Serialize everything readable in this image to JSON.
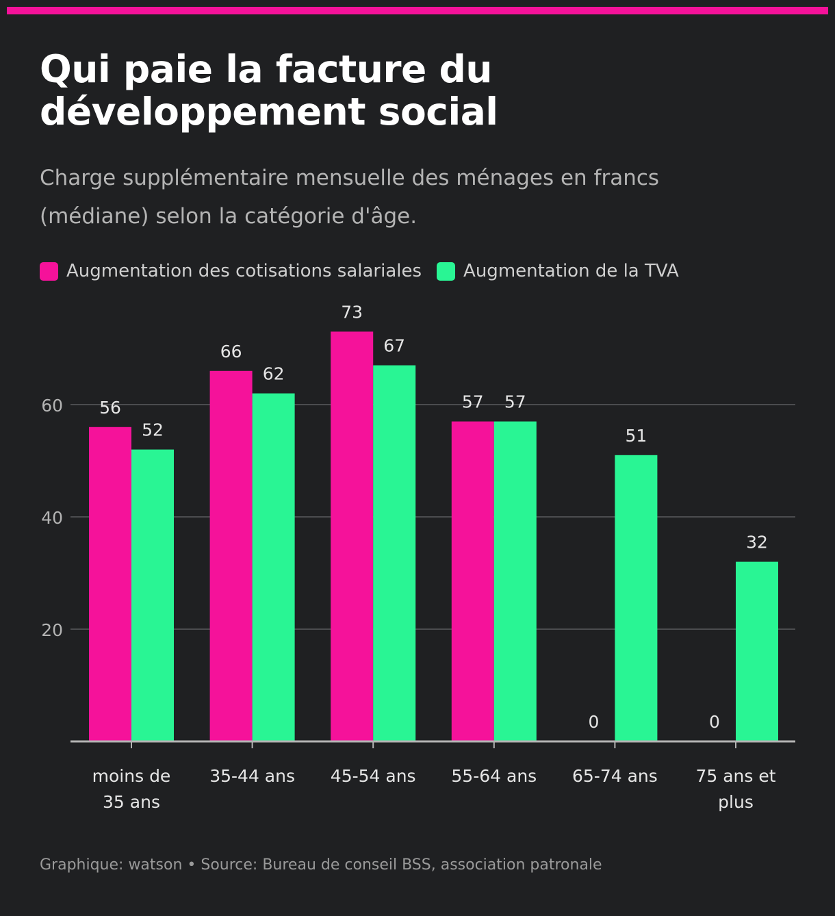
{
  "header": {
    "title_line1": "Qui paie la facture du",
    "title_line2": "développement social",
    "subtitle_line1": "Charge supplémentaire mensuelle des ménages en francs",
    "subtitle_line2": "(médiane) selon la catégorie d'âge."
  },
  "footer": {
    "credit": "Graphique: watson • Source: Bureau de conseil BSS, association patronale"
  },
  "colors": {
    "accent": "#f5129a",
    "series1": "#f5129a",
    "series2": "#29f594",
    "background": "#1f2022"
  },
  "chart_data": {
    "type": "bar",
    "title": "Qui paie la facture du développement social",
    "categories": [
      [
        "moins de",
        "35 ans"
      ],
      [
        "35-44 ans"
      ],
      [
        "45-54 ans"
      ],
      [
        "55-64 ans"
      ],
      [
        "65-74 ans"
      ],
      [
        "75 ans et",
        "plus"
      ]
    ],
    "series": [
      {
        "name": "Augmentation des cotisations salariales",
        "color": "#f5129a",
        "values": [
          56,
          66,
          73,
          57,
          0,
          0
        ]
      },
      {
        "name": "Augmentation de la TVA",
        "color": "#29f594",
        "values": [
          52,
          62,
          67,
          57,
          51,
          32
        ]
      }
    ],
    "ylim": [
      0,
      80
    ],
    "yticks": [
      20,
      40,
      60
    ],
    "xlabel": "",
    "ylabel": "",
    "grid": true,
    "legend": "top-left"
  }
}
